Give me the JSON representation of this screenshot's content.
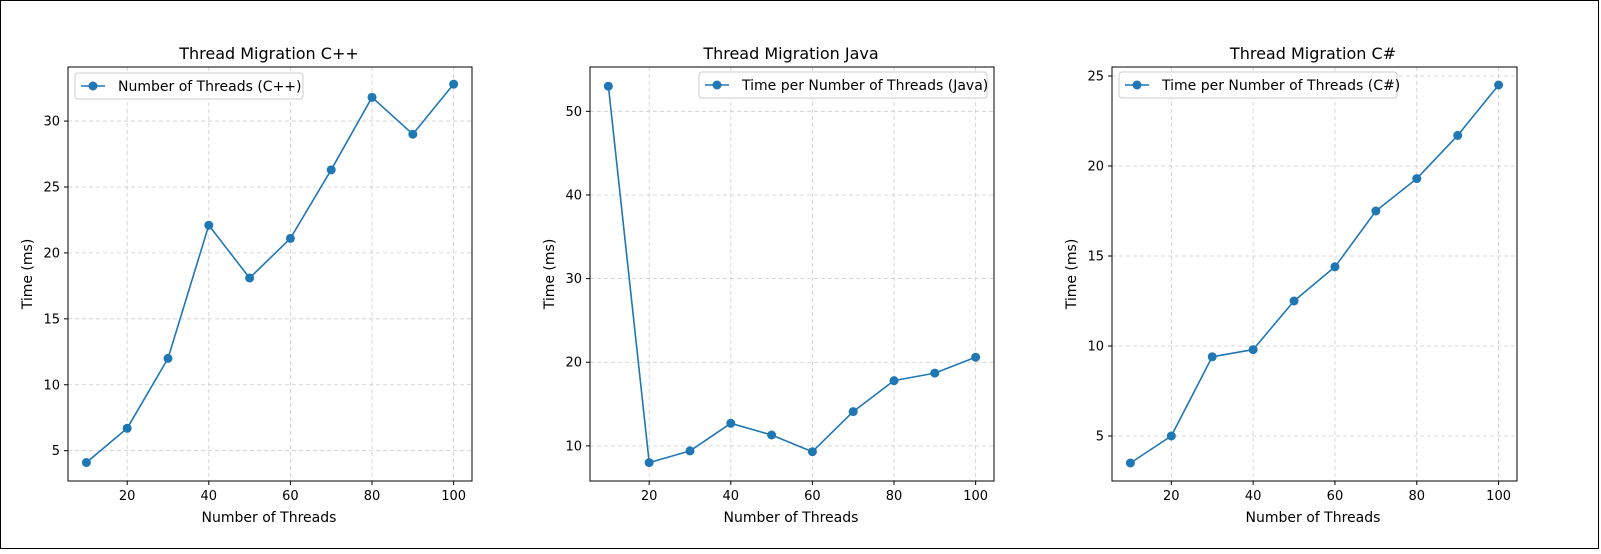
{
  "colors": {
    "series": "#1f77b4",
    "grid": "#cccccc",
    "axis": "#000000",
    "legend_border": "#cccccc"
  },
  "chart_data": [
    {
      "type": "line",
      "title": "Thread Migration C++",
      "xlabel": "Number of Threads",
      "ylabel": "Time (ms)",
      "x": [
        10,
        20,
        30,
        40,
        50,
        60,
        70,
        80,
        90,
        100
      ],
      "series": [
        {
          "name": "Number of Threads (C++)",
          "values": [
            4.1,
            6.7,
            12.0,
            22.1,
            18.1,
            21.1,
            26.3,
            31.8,
            29.0,
            32.8
          ],
          "marker": "circle"
        }
      ],
      "xlim": [
        5.5,
        104.5
      ],
      "ylim": [
        2.7,
        34.1
      ],
      "xticks": [
        20,
        40,
        60,
        80,
        100
      ],
      "yticks": [
        5,
        10,
        15,
        20,
        25,
        30
      ],
      "grid": true,
      "grid_style": "dashed",
      "legend_position": "upper left"
    },
    {
      "type": "line",
      "title": "Thread Migration Java",
      "xlabel": "Number of Threads",
      "ylabel": "Time (ms)",
      "x": [
        10,
        20,
        30,
        40,
        50,
        60,
        70,
        80,
        90,
        100
      ],
      "series": [
        {
          "name": "Time per Number of Threads (Java)",
          "values": [
            53.0,
            8.0,
            9.4,
            12.7,
            11.3,
            9.3,
            14.1,
            17.8,
            18.7,
            20.6
          ],
          "marker": "circle"
        }
      ],
      "xlim": [
        5.5,
        104.5
      ],
      "ylim": [
        5.8,
        55.3
      ],
      "xticks": [
        20,
        40,
        60,
        80,
        100
      ],
      "yticks": [
        10,
        20,
        30,
        40,
        50
      ],
      "grid": true,
      "grid_style": "dashed",
      "legend_position": "upper right"
    },
    {
      "type": "line",
      "title": "Thread Migration C#",
      "xlabel": "Number of Threads",
      "ylabel": "Time (ms)",
      "x": [
        10,
        20,
        30,
        40,
        50,
        60,
        70,
        80,
        90,
        100
      ],
      "series": [
        {
          "name": "Time per Number of Threads (C#)",
          "values": [
            3.5,
            5.0,
            9.4,
            9.8,
            12.5,
            14.4,
            17.5,
            19.3,
            21.7,
            24.5
          ],
          "marker": "circle"
        }
      ],
      "xlim": [
        5.5,
        104.5
      ],
      "ylim": [
        2.5,
        25.5
      ],
      "xticks": [
        20,
        40,
        60,
        80,
        100
      ],
      "yticks": [
        5,
        10,
        15,
        20,
        25
      ],
      "grid": true,
      "grid_style": "dashed",
      "legend_position": "upper left"
    }
  ]
}
